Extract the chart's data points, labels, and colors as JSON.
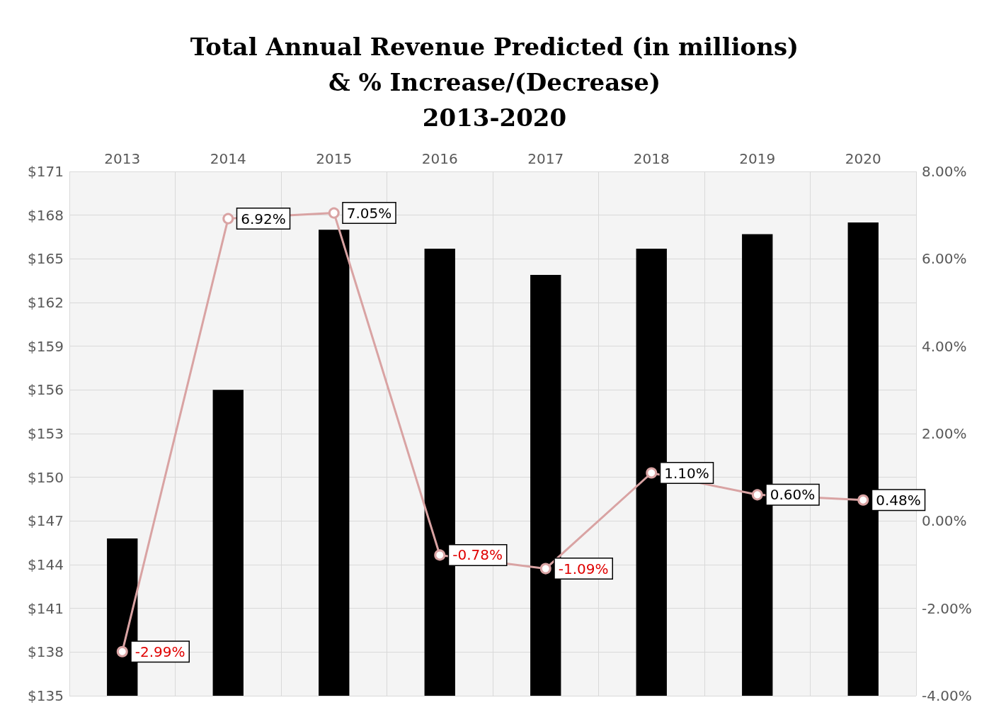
{
  "chart_data": {
    "type": "bar",
    "title": "Total Annual Revenue Predicted (in millions)\n& % Increase/(Decrease)\n2013-2020",
    "categories": [
      "2013",
      "2014",
      "2015",
      "2016",
      "2017",
      "2018",
      "2019",
      "2020"
    ],
    "series": [
      {
        "color": "#000000",
        "values": [
          145.8,
          156.0,
          167.0,
          165.7,
          163.9,
          165.7,
          166.7,
          167.5
        ]
      },
      {
        "type": "line",
        "axis": "y2",
        "color": "#d9a3a3",
        "marker": "circle",
        "data_labels": true,
        "values": [
          -2.99,
          6.92,
          7.05,
          -0.78,
          -1.09,
          1.1,
          0.6,
          0.48
        ],
        "value_labels": [
          "-2.99%",
          "6.92%",
          "7.05%",
          "-0.78%",
          "-1.09%",
          "1.10%",
          "0.60%",
          "0.48%"
        ]
      }
    ],
    "ylim": [
      135,
      171
    ],
    "yticks": [
      {
        "value": 135,
        "label": "$135"
      },
      {
        "value": 138,
        "label": "$138"
      },
      {
        "value": 141,
        "label": "$141"
      },
      {
        "value": 144,
        "label": "$144"
      },
      {
        "value": 147,
        "label": "$147"
      },
      {
        "value": 150,
        "label": "$150"
      },
      {
        "value": 153,
        "label": "$153"
      },
      {
        "value": 156,
        "label": "$156"
      },
      {
        "value": 159,
        "label": "$159"
      },
      {
        "value": 162,
        "label": "$162"
      },
      {
        "value": 165,
        "label": "$165"
      },
      {
        "value": 168,
        "label": "$168"
      },
      {
        "value": 171,
        "label": "$171"
      }
    ],
    "y2lim": [
      -4,
      8
    ],
    "y2ticks": [
      {
        "value": -4,
        "label": "-4.00%"
      },
      {
        "value": -2,
        "label": "-2.00%"
      },
      {
        "value": 0,
        "label": "0.00%"
      },
      {
        "value": 2,
        "label": "2.00%"
      },
      {
        "value": 4,
        "label": "4.00%"
      },
      {
        "value": 6,
        "label": "6.00%"
      },
      {
        "value": 8,
        "label": "8.00%"
      }
    ],
    "grid": true
  }
}
